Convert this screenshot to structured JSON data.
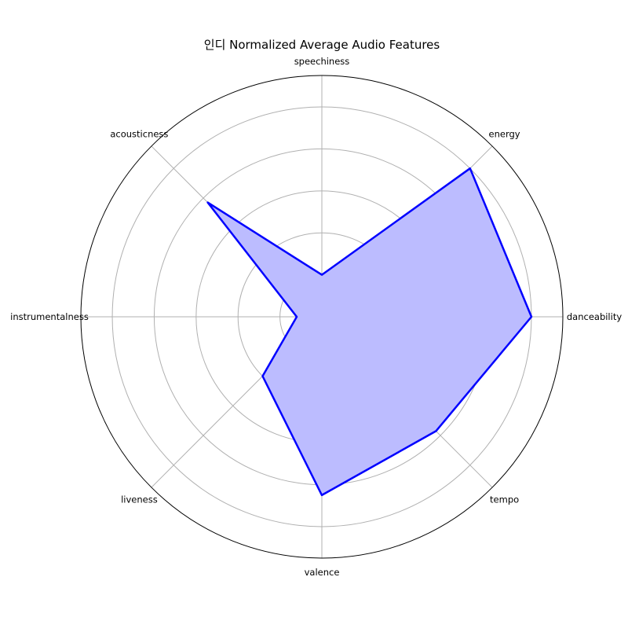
{
  "chart_data": {
    "type": "radar",
    "title": "인디 Normalized Average Audio Features",
    "categories": [
      "danceability",
      "energy",
      "speechiness",
      "acousticness",
      "instrumentalness",
      "liveness",
      "valence",
      "tempo"
    ],
    "series": [
      {
        "values": [
          1.0,
          1.0,
          0.2,
          0.77,
          0.12,
          0.4,
          0.85,
          0.77
        ]
      }
    ],
    "rlim": [
      0,
      1.15
    ],
    "rgrid": [
      0.2,
      0.4,
      0.6,
      0.8,
      1.0
    ],
    "grid": true,
    "colors": {
      "line": "#0000ff",
      "fill": "#bcbcff",
      "grid": "#b0b0b0",
      "frame": "#000000"
    }
  }
}
